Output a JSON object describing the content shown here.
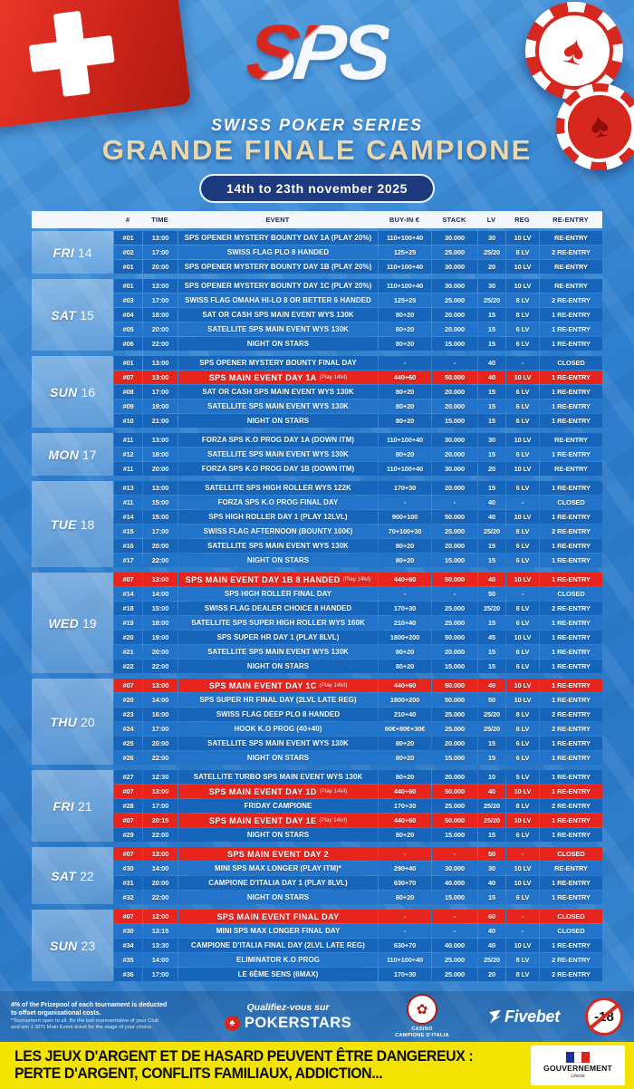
{
  "header": {
    "logo_text": "SPS",
    "series_name": "SWISS POKER SERIES",
    "title": "GRANDE FINALE CAMPIONE",
    "date_range": "14th to 23th november 2025",
    "spade_icon": "♠"
  },
  "colors": {
    "accent_red": "#e8251c",
    "row_dark": "#1665ba",
    "row_light": "#2274cb",
    "title_cream": "#ecd7a8",
    "disclaimer_yellow": "#f2e300",
    "pill_navy": "#1e3a7e"
  },
  "table": {
    "columns": [
      "#",
      "TIME",
      "EVENT",
      "BUY-IN €",
      "STACK",
      "LV",
      "REG",
      "RE-ENTRY"
    ],
    "days": [
      {
        "day": "FRI",
        "date": "14",
        "rows": [
          {
            "num": "#01",
            "time": "13:00",
            "event": "SPS OPENER MYSTERY BOUNTY DAY 1A (PLAY 20%)",
            "note": "",
            "buyin": "110+100+40",
            "stack": "30.000",
            "lv": "30",
            "reg": "10 LV",
            "reentry": "RE-ENTRY",
            "highlight": false
          },
          {
            "num": "#02",
            "time": "17:00",
            "event": "SWISS FLAG PLO 8 HANDED",
            "note": "",
            "buyin": "125+25",
            "stack": "25.000",
            "lv": "25/20",
            "reg": "8 LV",
            "reentry": "2 RE-ENTRY",
            "highlight": false
          },
          {
            "num": "#01",
            "time": "20:00",
            "event": "SPS OPENER MYSTERY BOUNTY DAY 1B (PLAY 20%)",
            "note": "",
            "buyin": "110+100+40",
            "stack": "30.000",
            "lv": "20",
            "reg": "10 LV",
            "reentry": "RE-ENTRY",
            "highlight": false
          }
        ]
      },
      {
        "day": "SAT",
        "date": "15",
        "rows": [
          {
            "num": "#01",
            "time": "13:00",
            "event": "SPS OPENER MYSTERY BOUNTY DAY 1C (PLAY 20%)",
            "note": "",
            "buyin": "110+100+40",
            "stack": "30.000",
            "lv": "30",
            "reg": "10 LV",
            "reentry": "RE-ENTRY",
            "highlight": false
          },
          {
            "num": "#03",
            "time": "17:00",
            "event": "SWISS FLAG OMAHA HI-LO 8 OR BETTER 6 HANDED",
            "note": "",
            "buyin": "125+25",
            "stack": "25.000",
            "lv": "25/20",
            "reg": "8 LV",
            "reentry": "2 RE-ENTRY",
            "highlight": false
          },
          {
            "num": "#04",
            "time": "18:00",
            "event": "SAT OR CASH SPS MAIN EVENT WYS 130K",
            "note": "",
            "buyin": "80+20",
            "stack": "20.000",
            "lv": "15",
            "reg": "8 LV",
            "reentry": "1 RE-ENTRY",
            "highlight": false
          },
          {
            "num": "#05",
            "time": "20:00",
            "event": "SATELLITE SPS MAIN EVENT WYS 130K",
            "note": "",
            "buyin": "80+20",
            "stack": "20.000",
            "lv": "15",
            "reg": "6 LV",
            "reentry": "1 RE-ENTRY",
            "highlight": false
          },
          {
            "num": "#06",
            "time": "22:00",
            "event": "NIGHT ON STARS",
            "note": "",
            "buyin": "80+20",
            "stack": "15.000",
            "lv": "15",
            "reg": "6 LV",
            "reentry": "1 RE-ENTRY",
            "highlight": false
          }
        ]
      },
      {
        "day": "SUN",
        "date": "16",
        "rows": [
          {
            "num": "#01",
            "time": "13:00",
            "event": "SPS OPENER MYSTERY BOUNTY FINAL DAY",
            "note": "",
            "buyin": "-",
            "stack": "-",
            "lv": "40",
            "reg": "-",
            "reentry": "CLOSED",
            "highlight": false
          },
          {
            "num": "#07",
            "time": "13:00",
            "event": "SPS MAIN EVENT DAY 1A",
            "note": "(Play 14lvl)",
            "buyin": "440+60",
            "stack": "50.000",
            "lv": "40",
            "reg": "10 LV",
            "reentry": "1 RE-ENTRY",
            "highlight": true
          },
          {
            "num": "#08",
            "time": "17:00",
            "event": "SAT OR CASH SPS MAIN EVENT WYS 130K",
            "note": "",
            "buyin": "80+20",
            "stack": "20.000",
            "lv": "15",
            "reg": "6 LV",
            "reentry": "1 RE-ENTRY",
            "highlight": false
          },
          {
            "num": "#09",
            "time": "19:00",
            "event": "SATELLITE SPS MAIN EVENT WYS 130K",
            "note": "",
            "buyin": "80+20",
            "stack": "20.000",
            "lv": "15",
            "reg": "6 LV",
            "reentry": "1 RE-ENTRY",
            "highlight": false
          },
          {
            "num": "#10",
            "time": "21:00",
            "event": "NIGHT ON STARS",
            "note": "",
            "buyin": "80+20",
            "stack": "15.000",
            "lv": "15",
            "reg": "6 LV",
            "reentry": "1 RE-ENTRY",
            "highlight": false
          }
        ]
      },
      {
        "day": "MON",
        "date": "17",
        "rows": [
          {
            "num": "#11",
            "time": "13:00",
            "event": "FORZA SPS K.O PROG DAY 1A (DOWN ITM)",
            "note": "",
            "buyin": "110+100+40",
            "stack": "30.000",
            "lv": "30",
            "reg": "10 LV",
            "reentry": "RE-ENTRY",
            "highlight": false
          },
          {
            "num": "#12",
            "time": "18:00",
            "event": "SATELLITE SPS MAIN EVENT WYS 130K",
            "note": "",
            "buyin": "80+20",
            "stack": "20.000",
            "lv": "15",
            "reg": "6 LV",
            "reentry": "1 RE-ENTRY",
            "highlight": false
          },
          {
            "num": "#11",
            "time": "20:00",
            "event": "FORZA SPS K.O PROG DAY 1B (DOWN ITM)",
            "note": "",
            "buyin": "110+100+40",
            "stack": "30.000",
            "lv": "20",
            "reg": "10 LV",
            "reentry": "RE-ENTRY",
            "highlight": false
          }
        ]
      },
      {
        "day": "TUE",
        "date": "18",
        "rows": [
          {
            "num": "#13",
            "time": "13:00",
            "event": "SATELLITE SPS HIGH ROLLER WYS 122K",
            "note": "",
            "buyin": "170+30",
            "stack": "20.000",
            "lv": "15",
            "reg": "6 LV",
            "reentry": "1 RE-ENTRY",
            "highlight": false
          },
          {
            "num": "#11",
            "time": "15:00",
            "event": "FORZA SPS K.O PROG FINAL DAY",
            "note": "",
            "buyin": "-",
            "stack": "-",
            "lv": "40",
            "reg": "-",
            "reentry": "CLOSED",
            "highlight": false
          },
          {
            "num": "#14",
            "time": "15:00",
            "event": "SPS HIGH ROLLER DAY 1 (PLAY 12LVL)",
            "note": "",
            "buyin": "900+100",
            "stack": "50.000",
            "lv": "40",
            "reg": "10 LV",
            "reentry": "1 RE-ENTRY",
            "highlight": false
          },
          {
            "num": "#15",
            "time": "17:00",
            "event": "SWISS FLAG AFTERNOON (BOUNTY 100€)",
            "note": "",
            "buyin": "70+100+30",
            "stack": "25.000",
            "lv": "25/20",
            "reg": "8 LV",
            "reentry": "2 RE-ENTRY",
            "highlight": false
          },
          {
            "num": "#16",
            "time": "20:00",
            "event": "SATELLITE SPS MAIN EVENT WYS 130K",
            "note": "",
            "buyin": "80+20",
            "stack": "20.000",
            "lv": "15",
            "reg": "6 LV",
            "reentry": "1 RE-ENTRY",
            "highlight": false
          },
          {
            "num": "#17",
            "time": "22:00",
            "event": "NIGHT ON STARS",
            "note": "",
            "buyin": "80+20",
            "stack": "15.000",
            "lv": "15",
            "reg": "6 LV",
            "reentry": "1 RE-ENTRY",
            "highlight": false
          }
        ]
      },
      {
        "day": "WED",
        "date": "19",
        "rows": [
          {
            "num": "#07",
            "time": "13:00",
            "event": "SPS MAIN EVENT DAY 1B 8 HANDED",
            "note": "(Play 14lvl)",
            "buyin": "440+60",
            "stack": "50.000",
            "lv": "40",
            "reg": "10 LV",
            "reentry": "1 RE-ENTRY",
            "highlight": true
          },
          {
            "num": "#14",
            "time": "14:00",
            "event": "SPS HIGH ROLLER FINAL DAY",
            "note": "",
            "buyin": "-",
            "stack": "-",
            "lv": "50",
            "reg": "-",
            "reentry": "CLOSED",
            "highlight": false
          },
          {
            "num": "#18",
            "time": "15:00",
            "event": "SWISS FLAG DEALER CHOICE 8 HANDED",
            "note": "",
            "buyin": "170+30",
            "stack": "25.000",
            "lv": "25/20",
            "reg": "8 LV",
            "reentry": "2 RE-ENTRY",
            "highlight": false
          },
          {
            "num": "#19",
            "time": "18:00",
            "event": "SATELLITE SPS SUPER HIGH ROLLER WYS 160K",
            "note": "",
            "buyin": "210+40",
            "stack": "25.000",
            "lv": "15",
            "reg": "6 LV",
            "reentry": "1 RE-ENTRY",
            "highlight": false
          },
          {
            "num": "#20",
            "time": "19:00",
            "event": "SPS SUPER HR DAY 1 (PLAY 8LVL)",
            "note": "",
            "buyin": "1800+200",
            "stack": "50.000",
            "lv": "45",
            "reg": "10 LV",
            "reentry": "1 RE-ENTRY",
            "highlight": false
          },
          {
            "num": "#21",
            "time": "20:00",
            "event": "SATELLITE SPS MAIN EVENT WYS 130K",
            "note": "",
            "buyin": "80+20",
            "stack": "20.000",
            "lv": "15",
            "reg": "6 LV",
            "reentry": "1 RE-ENTRY",
            "highlight": false
          },
          {
            "num": "#22",
            "time": "22:00",
            "event": "NIGHT ON STARS",
            "note": "",
            "buyin": "80+20",
            "stack": "15.000",
            "lv": "15",
            "reg": "6 LV",
            "reentry": "1 RE-ENTRY",
            "highlight": false
          }
        ]
      },
      {
        "day": "THU",
        "date": "20",
        "rows": [
          {
            "num": "#07",
            "time": "13:00",
            "event": "SPS MAIN EVENT DAY 1C",
            "note": "(Play 14lvl)",
            "buyin": "440+60",
            "stack": "50.000",
            "lv": "40",
            "reg": "10 LV",
            "reentry": "1 RE-ENTRY",
            "highlight": true
          },
          {
            "num": "#20",
            "time": "14:00",
            "event": "SPS SUPER HR FINAL DAY (2LVL LATE REG)",
            "note": "",
            "buyin": "1800+200",
            "stack": "50.000",
            "lv": "50",
            "reg": "10 LV",
            "reentry": "1 RE-ENTRY",
            "highlight": false
          },
          {
            "num": "#23",
            "time": "16:00",
            "event": "SWISS FLAG DEEP PLO 8 HANDED",
            "note": "",
            "buyin": "210+40",
            "stack": "25.000",
            "lv": "25/20",
            "reg": "8 LV",
            "reentry": "2 RE-ENTRY",
            "highlight": false
          },
          {
            "num": "#24",
            "time": "17:00",
            "event": "HOOK K.O PROG (40+40)",
            "note": "",
            "buyin": "90€+80€+30€",
            "stack": "25.000",
            "lv": "25/20",
            "reg": "8 LV",
            "reentry": "2 RE-ENTRY",
            "highlight": false
          },
          {
            "num": "#25",
            "time": "20:00",
            "event": "SATELLITE SPS MAIN EVENT WYS 130K",
            "note": "",
            "buyin": "80+20",
            "stack": "20.000",
            "lv": "15",
            "reg": "6 LV",
            "reentry": "1 RE-ENTRY",
            "highlight": false
          },
          {
            "num": "#26",
            "time": "22:00",
            "event": "NIGHT ON STARS",
            "note": "",
            "buyin": "80+20",
            "stack": "15.000",
            "lv": "15",
            "reg": "6 LV",
            "reentry": "1 RE-ENTRY",
            "highlight": false
          }
        ]
      },
      {
        "day": "FRI",
        "date": "21",
        "rows": [
          {
            "num": "#27",
            "time": "12:30",
            "event": "SATELLITE TURBO SPS MAIN EVENT WYS 130K",
            "note": "",
            "buyin": "80+20",
            "stack": "20.000",
            "lv": "10",
            "reg": "5 LV",
            "reentry": "1 RE-ENTRY",
            "highlight": false
          },
          {
            "num": "#07",
            "time": "13:00",
            "event": "SPS MAIN EVENT DAY 1D",
            "note": "(Play 14lvl)",
            "buyin": "440+60",
            "stack": "50.000",
            "lv": "40",
            "reg": "10 LV",
            "reentry": "1 RE-ENTRY",
            "highlight": true
          },
          {
            "num": "#28",
            "time": "17:00",
            "event": "FRIDAY CAMPIONE",
            "note": "",
            "buyin": "170+30",
            "stack": "25.000",
            "lv": "25/20",
            "reg": "8 LV",
            "reentry": "2 RE-ENTRY",
            "highlight": false
          },
          {
            "num": "#07",
            "time": "20:15",
            "event": "SPS MAIN EVENT DAY 1E",
            "note": "(Play 14lvl)",
            "buyin": "440+60",
            "stack": "50.000",
            "lv": "25/20",
            "reg": "10 LV",
            "reentry": "1 RE-ENTRY",
            "highlight": true
          },
          {
            "num": "#29",
            "time": "22:00",
            "event": "NIGHT ON STARS",
            "note": "",
            "buyin": "80+20",
            "stack": "15.000",
            "lv": "15",
            "reg": "6 LV",
            "reentry": "1 RE-ENTRY",
            "highlight": false
          }
        ]
      },
      {
        "day": "SAT",
        "date": "22",
        "rows": [
          {
            "num": "#07",
            "time": "13:00",
            "event": "SPS MAIN EVENT DAY 2",
            "note": "",
            "buyin": "-",
            "stack": "-",
            "lv": "50",
            "reg": "-",
            "reentry": "CLOSED",
            "highlight": true
          },
          {
            "num": "#30",
            "time": "14:00",
            "event": "MINI SPS MAX LONGER (PLAY ITM)*",
            "note": "",
            "buyin": "290+40",
            "stack": "30.000",
            "lv": "30",
            "reg": "10 LV",
            "reentry": "RE-ENTRY",
            "highlight": false
          },
          {
            "num": "#31",
            "time": "20:00",
            "event": "CAMPIONE D'ITALIA DAY 1 (PLAY 8LVL)",
            "note": "",
            "buyin": "630+70",
            "stack": "40.000",
            "lv": "40",
            "reg": "10 LV",
            "reentry": "1 RE-ENTRY",
            "highlight": false
          },
          {
            "num": "#32",
            "time": "22:00",
            "event": "NIGHT ON STARS",
            "note": "",
            "buyin": "80+20",
            "stack": "15.000",
            "lv": "15",
            "reg": "6 LV",
            "reentry": "1 RE-ENTRY",
            "highlight": false
          }
        ]
      },
      {
        "day": "SUN",
        "date": "23",
        "rows": [
          {
            "num": "#07",
            "time": "12:00",
            "event": "SPS MAIN EVENT FINAL DAY",
            "note": "",
            "buyin": "-",
            "stack": "-",
            "lv": "60",
            "reg": "-",
            "reentry": "CLOSED",
            "highlight": true
          },
          {
            "num": "#30",
            "time": "13:15",
            "event": "MINI SPS MAX LONGER FINAL DAY",
            "note": "",
            "buyin": "-",
            "stack": "-",
            "lv": "40",
            "reg": "-",
            "reentry": "CLOSED",
            "highlight": false
          },
          {
            "num": "#34",
            "time": "13:30",
            "event": "CAMPIONE D'ITALIA FINAL DAY (2LVL LATE REG)",
            "note": "",
            "buyin": "630+70",
            "stack": "40.000",
            "lv": "40",
            "reg": "10 LV",
            "reentry": "1 RE-ENTRY",
            "highlight": false
          },
          {
            "num": "#35",
            "time": "14:00",
            "event": "ELIMINATOR K.O PROG",
            "note": "",
            "buyin": "110+100+40",
            "stack": "25.000",
            "lv": "25/20",
            "reg": "8 LV",
            "reentry": "2 RE-ENTRY",
            "highlight": false
          },
          {
            "num": "#36",
            "time": "17:00",
            "event": "LE 6ÈME SENS (6MAX)",
            "note": "",
            "buyin": "170+30",
            "stack": "25.000",
            "lv": "20",
            "reg": "8 LV",
            "reentry": "2 RE-ENTRY",
            "highlight": false
          }
        ]
      }
    ]
  },
  "footer": {
    "note1": "4% of the Prizepool of each tournament is deducted",
    "note2": "to offset organisational costs.",
    "note3": "*Tournament open to all. Be the last representative of your Club",
    "note4": "and win 1 SPS Main Event ticket for the stage of your choice.",
    "qualify_label": "Qualifiez-vous sur",
    "pokerstars": "POKERSTARS",
    "spade_icon": "♠",
    "casino_line1": "CASINO",
    "casino_line2": "CAMPIONE D'ITALIA",
    "casino_badge_icon": "✿",
    "fivebet": "Fivebet",
    "age_badge": "-18"
  },
  "disclaimer": {
    "line1": "LES JEUX D'ARGENT ET DE HASARD PEUVENT ÊTRE DANGEREUX :",
    "line2": "PERTE D'ARGENT, CONFLITS FAMILIAUX, ADDICTION...",
    "gov_label": "GOUVERNEMENT",
    "gov_sub": "Liberté"
  }
}
